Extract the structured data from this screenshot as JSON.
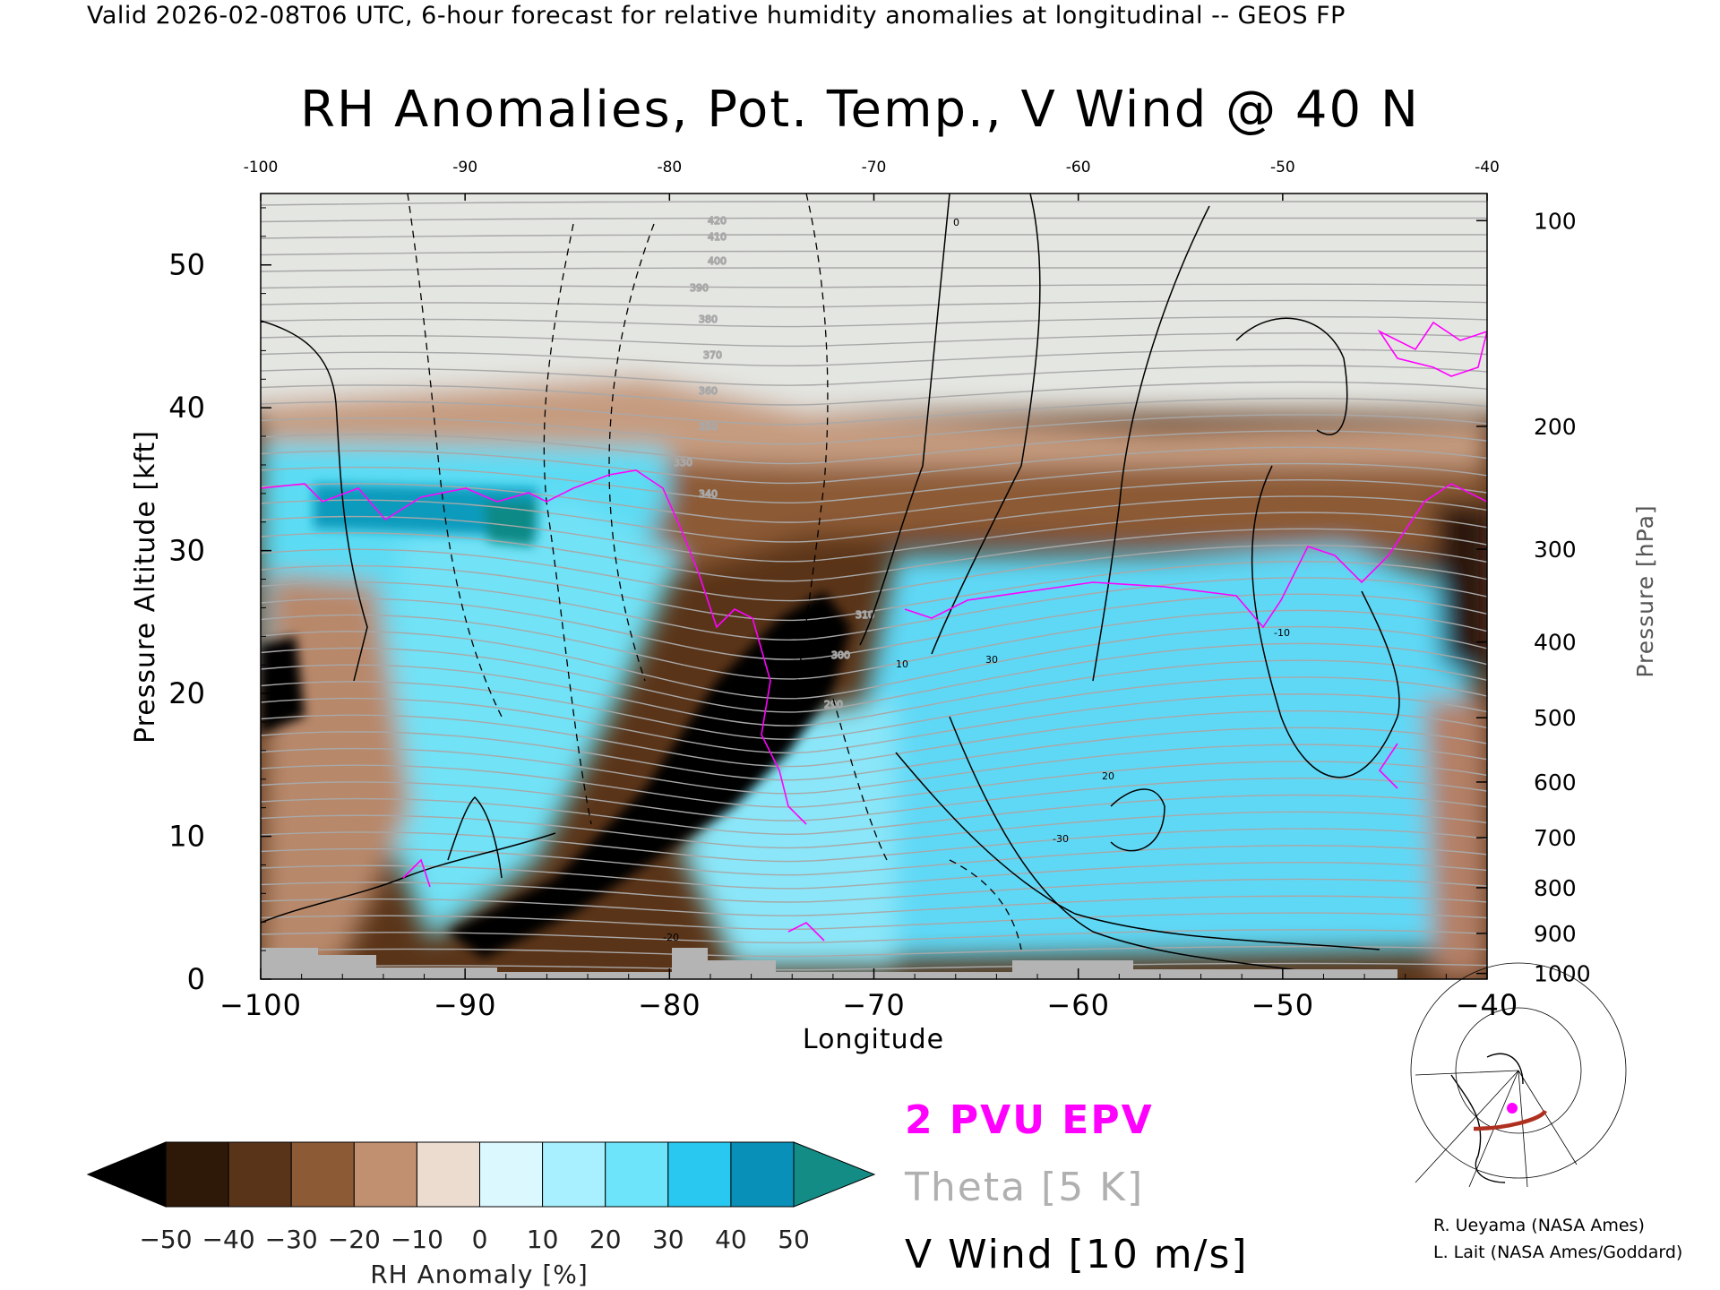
{
  "header": "Valid 2026-02-08T06 UTC, 6-hour forecast for relative humidity anomalies at longitudinal -- GEOS FP",
  "chart_data": {
    "type": "heatmap",
    "title": "RH Anomalies, Pot. Temp., V Wind @ 40 N",
    "xlabel": "Longitude",
    "ylabel": "Pressure Altitude [kft]",
    "y2label": "Pressure [hPa]",
    "xlim": [
      -100,
      -40
    ],
    "ylim": [
      0,
      55
    ],
    "x_ticks": [
      -100,
      -90,
      -80,
      -70,
      -60,
      -50,
      -40
    ],
    "x_tick_labels": [
      "−100",
      "−90",
      "−80",
      "−70",
      "−60",
      "−50",
      "−40"
    ],
    "top_tick_labels": [
      "-100",
      "-90",
      "-80",
      "-70",
      "-60",
      "-50",
      "-40"
    ],
    "y_ticks": [
      0,
      10,
      20,
      30,
      40,
      50
    ],
    "pressure_ticks": [
      {
        "hpa": "100",
        "kft": 53.1
      },
      {
        "hpa": "200",
        "kft": 38.7
      },
      {
        "hpa": "300",
        "kft": 30.1
      },
      {
        "hpa": "400",
        "kft": 23.6
      },
      {
        "hpa": "500",
        "kft": 18.3
      },
      {
        "hpa": "600",
        "kft": 13.8
      },
      {
        "hpa": "700",
        "kft": 9.9
      },
      {
        "hpa": "800",
        "kft": 6.4
      },
      {
        "hpa": "900",
        "kft": 3.2
      },
      {
        "hpa": "1000",
        "kft": 0.4
      }
    ],
    "rh_anomaly_regions": [
      {
        "name": "upper stratosphere (low anomaly)",
        "anomaly": 2,
        "lon": [
          -100,
          -40
        ],
        "kft": [
          40,
          55
        ]
      },
      {
        "name": "upper tropospheric moist band west",
        "anomaly": 35,
        "lon": [
          -100,
          -80
        ],
        "kft": [
          29,
          38
        ]
      },
      {
        "name": "dry band above trough",
        "anomaly": -30,
        "lon": [
          -80,
          -42
        ],
        "kft": [
          30,
          39
        ]
      },
      {
        "name": "western lower dry region",
        "anomaly": -30,
        "lon": [
          -100,
          -92
        ],
        "kft": [
          0,
          28
        ]
      },
      {
        "name": "central moist column",
        "anomaly": 25,
        "lon": [
          -92,
          -83
        ],
        "kft": [
          8,
          30
        ]
      },
      {
        "name": "sloping dry tongue",
        "anomaly": -50,
        "lon": [
          -90,
          -70
        ],
        "kft": [
          2,
          27
        ]
      },
      {
        "name": "eastern moist region",
        "anomaly": 30,
        "lon": [
          -72,
          -42
        ],
        "kft": [
          1,
          30
        ]
      },
      {
        "name": "eastern edge dry",
        "anomaly": -45,
        "lon": [
          -43,
          -40
        ],
        "kft": [
          22,
          33
        ]
      }
    ],
    "theta_contour_labels": [
      "310",
      "300",
      "290",
      "330",
      "340",
      "350",
      "360",
      "370",
      "380",
      "390",
      "400",
      "410",
      "420"
    ],
    "vwind_contour_labels": [
      "0",
      "10",
      "-10",
      "30",
      "-30",
      "20",
      "-20"
    ],
    "epv_contour": "2 PVU",
    "colorbar": {
      "label": "RH Anomaly [%]",
      "tick_labels": [
        "−50",
        "−40",
        "−30",
        "−20",
        "−10",
        "0",
        "10",
        "20",
        "30",
        "40",
        "50"
      ],
      "colors": [
        "#000000",
        "#2e1808",
        "#5a3418",
        "#8c5a34",
        "#c09070",
        "#ecdcd0",
        "#dcf8ff",
        "#a8f0ff",
        "#6ee4fa",
        "#28c8f0",
        "#0890b8",
        "#138c86"
      ]
    },
    "legend": [
      "2 PVU EPV",
      "Theta [5 K]",
      "V Wind [10 m/s]"
    ]
  },
  "credits": [
    "R. Ueyama (NASA Ames)",
    "L. Lait (NASA Ames/Goddard)"
  ],
  "colors": {
    "epv": "#ff00ff",
    "theta": "#b0b0b0",
    "wind": "#000000",
    "ground": "#b4b4b4"
  }
}
